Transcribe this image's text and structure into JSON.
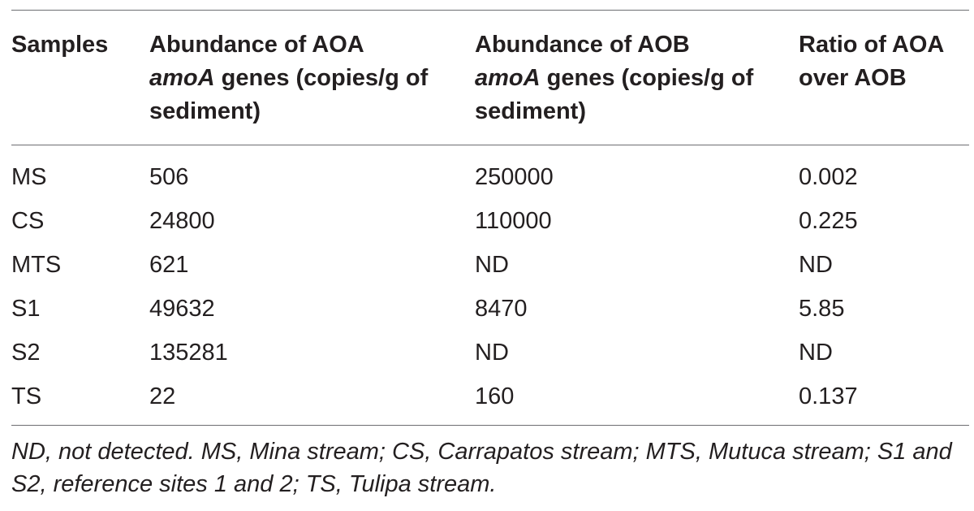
{
  "table": {
    "headers": [
      {
        "parts": [
          "Samples"
        ]
      },
      {
        "parts": [
          "Abundance of AOA",
          "amoA",
          " genes (copies/g of sediment)"
        ]
      },
      {
        "parts": [
          "Abundance of AOB",
          "amoA",
          " genes (copies/g of sediment)"
        ]
      },
      {
        "parts": [
          "Ratio of AOA over AOB"
        ]
      }
    ],
    "rows": [
      [
        "MS",
        "506",
        "250000",
        "0.002"
      ],
      [
        "CS",
        "24800",
        "110000",
        "0.225"
      ],
      [
        "MTS",
        "621",
        "ND",
        "ND"
      ],
      [
        "S1",
        "49632",
        "8470",
        "5.85"
      ],
      [
        "S2",
        "135281",
        "ND",
        "ND"
      ],
      [
        "TS",
        "22",
        "160",
        "0.137"
      ]
    ],
    "footnote": "ND, not detected. MS, Mina stream; CS, Carrapatos stream; MTS, Mutuca stream; S1 and S2, reference sites 1 and 2; TS, Tulipa stream."
  }
}
